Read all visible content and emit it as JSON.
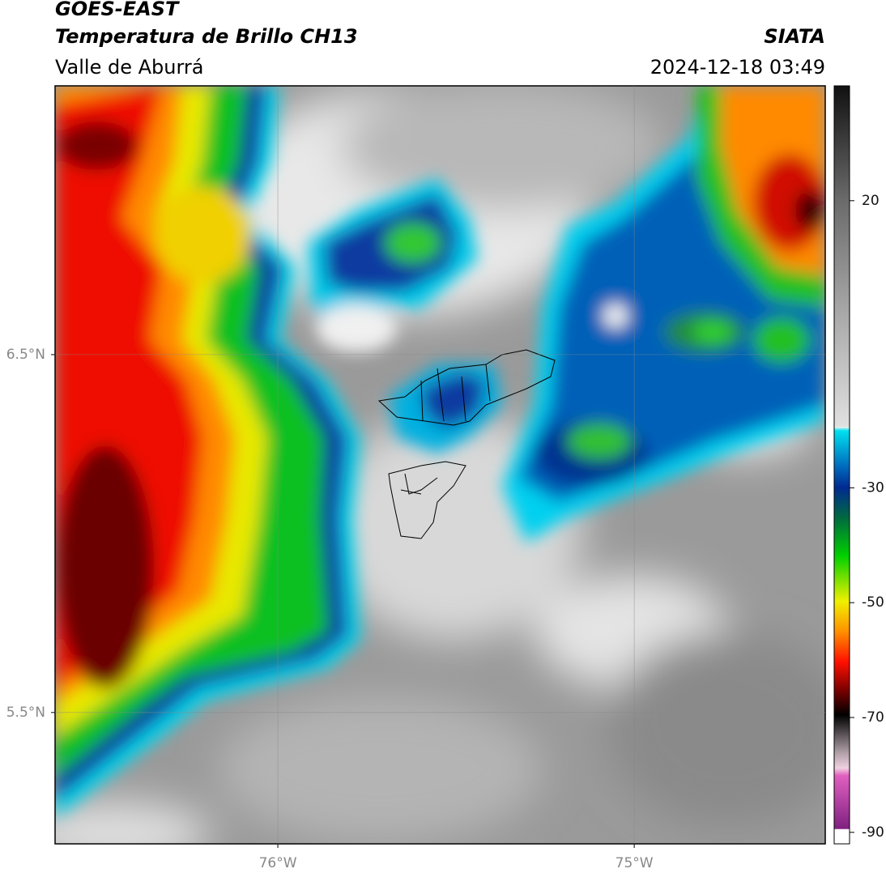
{
  "header": {
    "title": "GOES-EAST",
    "subtitle": "Temperatura de Brillo CH13",
    "region": "Valle de Aburrá",
    "source": "SIATA",
    "timestamp": "2024-12-18 03:49"
  },
  "map": {
    "xlim": [
      -76.625,
      -74.464
    ],
    "ylim": [
      5.133,
      7.251
    ],
    "xticks": [
      {
        "value": -76,
        "label": "76°W"
      },
      {
        "value": -75,
        "label": "75°W"
      }
    ],
    "yticks": [
      {
        "value": 6.5,
        "label": "6.5°N"
      },
      {
        "value": 5.5,
        "label": "5.5°N"
      }
    ],
    "grid": true
  },
  "colorbar": {
    "lim": [
      -92,
      40
    ],
    "ticks": [
      20,
      -30,
      -50,
      -70,
      -90
    ]
  }
}
